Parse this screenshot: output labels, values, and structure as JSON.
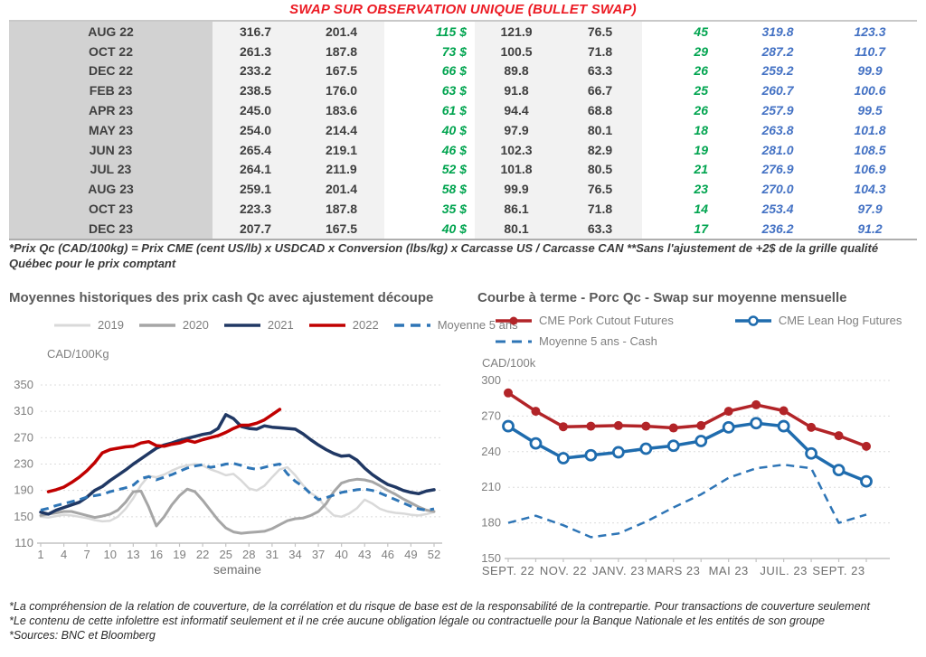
{
  "title": "SWAP SUR OBSERVATION UNIQUE (BULLET SWAP)",
  "accent_colors": {
    "title_red": "#ec1b24",
    "table_green": "#00a44f",
    "table_blue": "#4472c4",
    "month_column_gray": "#d2d2d2",
    "light_column_gray": "#f2f2f2"
  },
  "table": {
    "rows": [
      {
        "month": "AUG 22",
        "values": [
          "316.7",
          "201.4",
          "115 $",
          "121.9",
          "76.5",
          "45",
          "319.8",
          "123.3"
        ]
      },
      {
        "month": "OCT 22",
        "values": [
          "261.3",
          "187.8",
          "73 $",
          "100.5",
          "71.8",
          "29",
          "287.2",
          "110.7"
        ]
      },
      {
        "month": "DEC 22",
        "values": [
          "233.2",
          "167.5",
          "66 $",
          "89.8",
          "63.3",
          "26",
          "259.2",
          "99.9"
        ]
      },
      {
        "month": "FEB 23",
        "values": [
          "238.5",
          "176.0",
          "63 $",
          "91.8",
          "66.7",
          "25",
          "260.7",
          "100.6"
        ]
      },
      {
        "month": "APR 23",
        "values": [
          "245.0",
          "183.6",
          "61 $",
          "94.4",
          "68.8",
          "26",
          "257.9",
          "99.5"
        ]
      },
      {
        "month": "MAY 23",
        "values": [
          "254.0",
          "214.4",
          "40 $",
          "97.9",
          "80.1",
          "18",
          "263.8",
          "101.8"
        ]
      },
      {
        "month": "JUN 23",
        "values": [
          "265.4",
          "219.1",
          "46 $",
          "102.3",
          "82.9",
          "19",
          "281.0",
          "108.5"
        ]
      },
      {
        "month": "JUL 23",
        "values": [
          "264.1",
          "211.9",
          "52 $",
          "101.8",
          "80.5",
          "21",
          "276.9",
          "106.9"
        ]
      },
      {
        "month": "AUG 23",
        "values": [
          "259.1",
          "201.4",
          "58 $",
          "99.9",
          "76.5",
          "23",
          "270.0",
          "104.3"
        ]
      },
      {
        "month": "OCT 23",
        "values": [
          "223.3",
          "187.8",
          "35 $",
          "86.1",
          "71.8",
          "14",
          "253.4",
          "97.9"
        ]
      },
      {
        "month": "DEC 23",
        "values": [
          "207.7",
          "167.5",
          "40 $",
          "80.1",
          "63.3",
          "17",
          "236.2",
          "91.2"
        ]
      }
    ]
  },
  "table_footnote": "*Prix Qc (CAD/100kg) = Prix CME (cent US/lb) x USDCAD x Conversion (lbs/kg) x Carcasse US / Carcasse CAN **Sans l'ajustement de +2$ de la grille qualité Québec pour le prix comptant",
  "chart_data": [
    {
      "type": "line",
      "title": "Moyennes historiques des prix cash Qc avec ajustement découpe",
      "ylabel": "CAD/100Kg",
      "xlabel": "semaine",
      "ylim": [
        110,
        350
      ],
      "yticks": [
        110,
        150,
        190,
        230,
        270,
        310,
        350
      ],
      "xlim": [
        1,
        52
      ],
      "x_ticks": [
        1,
        4,
        7,
        10,
        13,
        16,
        19,
        22,
        25,
        28,
        31,
        34,
        37,
        40,
        43,
        46,
        49,
        52
      ],
      "grid": true,
      "legend_position": "top",
      "series": [
        {
          "name": "2019",
          "color": "#d9d9d9",
          "style": "solid",
          "width": 2.5,
          "values": [
            150,
            149,
            151,
            153,
            152,
            150,
            148,
            145,
            143,
            144,
            150,
            162,
            178,
            198,
            212,
            210,
            214,
            220,
            225,
            228,
            230,
            228,
            222,
            218,
            213,
            215,
            205,
            193,
            190,
            197,
            210,
            222,
            225,
            213,
            198,
            186,
            179,
            163,
            152,
            150,
            155,
            163,
            176,
            170,
            162,
            158,
            156,
            155,
            153,
            152,
            154,
            157
          ]
        },
        {
          "name": "2020",
          "color": "#a6a6a6",
          "style": "solid",
          "width": 3,
          "values": [
            152,
            154,
            156,
            158,
            158,
            155,
            152,
            149,
            151,
            154,
            160,
            172,
            188,
            189,
            165,
            136,
            150,
            168,
            182,
            192,
            188,
            175,
            160,
            145,
            133,
            127,
            125,
            126,
            127,
            128,
            132,
            138,
            144,
            147,
            148,
            152,
            158,
            170,
            188,
            201,
            205,
            207,
            206,
            203,
            197,
            190,
            184,
            177,
            171,
            165,
            160,
            158
          ]
        },
        {
          "name": "2021",
          "color": "#203864",
          "style": "solid",
          "width": 3.5,
          "values": [
            157,
            154,
            160,
            164,
            168,
            172,
            180,
            190,
            196,
            205,
            213,
            221,
            230,
            238,
            246,
            254,
            259,
            262,
            266,
            269,
            272,
            275,
            277,
            284,
            305,
            299,
            287,
            284,
            283,
            288,
            286,
            285,
            284,
            283,
            276,
            267,
            259,
            252,
            246,
            242,
            243,
            236,
            224,
            214,
            206,
            199,
            195,
            190,
            187,
            185,
            189,
            191
          ]
        },
        {
          "name": "2022",
          "color": "#c00000",
          "style": "solid",
          "width": 3.5,
          "values": [
            null,
            188,
            191,
            195,
            202,
            210,
            220,
            232,
            247,
            252,
            254,
            256,
            257,
            262,
            264,
            258,
            257,
            260,
            262,
            266,
            263,
            267,
            270,
            273,
            278,
            284,
            289,
            289,
            292,
            297,
            305,
            313,
            null,
            null,
            null,
            null,
            null,
            null,
            null,
            null,
            null,
            null,
            null,
            null,
            null,
            null,
            null,
            null,
            null,
            null,
            null,
            null
          ]
        },
        {
          "name": "Moyenne 5 ans",
          "color": "#2e75b6",
          "style": "dash",
          "width": 3,
          "values": [
            160,
            163,
            167,
            170,
            173,
            176,
            180,
            182,
            184,
            188,
            191,
            194,
            198,
            208,
            211,
            206,
            210,
            214,
            219,
            224,
            227,
            229,
            225,
            227,
            230,
            231,
            228,
            224,
            222,
            225,
            228,
            230,
            215,
            204,
            196,
            185,
            176,
            179,
            183,
            187,
            189,
            191,
            192,
            190,
            186,
            181,
            176,
            171,
            166,
            162,
            160,
            162
          ]
        }
      ]
    },
    {
      "type": "line",
      "title": "Courbe à terme - Porc Qc - Swap sur moyenne mensuelle",
      "ylabel": "CAD/100k",
      "xlabel": "",
      "ylim": [
        150,
        300
      ],
      "yticks": [
        150,
        180,
        210,
        240,
        270,
        300
      ],
      "categories": [
        "SEPT. 22",
        "OCT. 22",
        "NOV. 22",
        "DÉC. 22",
        "JANV. 23",
        "FÉVR. 23",
        "MARS 23",
        "AVR. 23",
        "MAI 23",
        "JUIN 23",
        "JUIL. 23",
        "AOÛT 23",
        "SEPT. 23",
        "OCT. 23"
      ],
      "x_tick_labels": [
        "SEPT. 22",
        "NOV. 22",
        "JANV. 23",
        "MARS 23",
        "MAI 23",
        "JUIL. 23",
        "SEPT. 23"
      ],
      "x_tick_indices": [
        0,
        2,
        4,
        6,
        8,
        10,
        12
      ],
      "grid": true,
      "legend_position": "top",
      "series": [
        {
          "name": "CME Pork Cutout Futures",
          "color": "#b22428",
          "style": "solid",
          "width": 3.5,
          "marker": "filled",
          "values": [
            289.5,
            274,
            261,
            261.5,
            262,
            261.5,
            260,
            262,
            274,
            279.5,
            274.5,
            260.5,
            253.5,
            244.5
          ]
        },
        {
          "name": "CME Lean Hog Futures",
          "color": "#1f6cae",
          "style": "solid",
          "width": 3.5,
          "marker": "open",
          "values": [
            261.5,
            247,
            234.5,
            237,
            239.5,
            242.5,
            245,
            249,
            260.5,
            264,
            261.5,
            238.5,
            224.5,
            215
          ]
        },
        {
          "name": "Moyenne 5 ans - Cash",
          "color": "#2e75b6",
          "style": "dash",
          "width": 2.5,
          "values": [
            180,
            186,
            178,
            168,
            171,
            181,
            193,
            204,
            218,
            226,
            229,
            226,
            180,
            187
          ]
        }
      ]
    }
  ],
  "footer": {
    "notes": [
      "*La compréhension de la relation de couverture, de la corrélation et du risque de base est de la responsabilité de la contrepartie. Pour transactions de couverture seulement",
      "*Le contenu de cette infolettre est informatif seulement et il ne crée aucune obligation légale ou contractuelle pour la Banque Nationale et les entités de son groupe",
      "*Sources: BNC et Bloomberg"
    ]
  }
}
